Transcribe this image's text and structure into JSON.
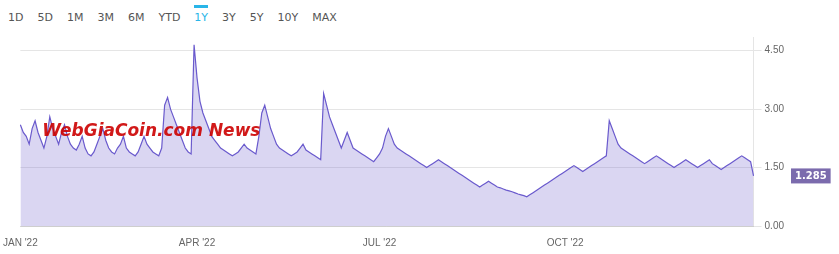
{
  "chart_data": {
    "type": "area",
    "buttons": [
      {
        "text": "1D"
      },
      {
        "text": "5D"
      },
      {
        "text": "1M"
      },
      {
        "text": "3M"
      },
      {
        "text": "6M"
      },
      {
        "text": "YTD"
      },
      {
        "text": "1Y",
        "color": "#29b5e8"
      },
      {
        "text": "3Y"
      },
      {
        "text": "5Y"
      },
      {
        "text": "10Y"
      },
      {
        "text": "MAX"
      }
    ],
    "annotations": [
      {
        "text": "WebGiaCoin.com News",
        "color": "#cc0000"
      },
      {
        "text": "1.285",
        "y": 1.285,
        "color": "#7b6bad"
      }
    ],
    "categories": [
      "JAN '22",
      null,
      null,
      null,
      null,
      null,
      null,
      null,
      null,
      null,
      null,
      null,
      null,
      null,
      null,
      null,
      null,
      null,
      null,
      null,
      null,
      null,
      null,
      null,
      null,
      null,
      null,
      null,
      null,
      null,
      null,
      null,
      null,
      null,
      null,
      null,
      null,
      null,
      null,
      null,
      null,
      null,
      null,
      null,
      null,
      null,
      null,
      null,
      null,
      null,
      null,
      null,
      null,
      null,
      null,
      null,
      null,
      null,
      null,
      null,
      "APR '22",
      null,
      null,
      null,
      null,
      null,
      null,
      null,
      null,
      null,
      null,
      null,
      null,
      null,
      null,
      null,
      null,
      null,
      null,
      null,
      null,
      null,
      null,
      null,
      null,
      null,
      null,
      null,
      null,
      null,
      null,
      null,
      null,
      null,
      null,
      null,
      null,
      null,
      null,
      null,
      null,
      null,
      null,
      null,
      null,
      null,
      null,
      null,
      null,
      null,
      null,
      null,
      null,
      null,
      null,
      null,
      null,
      null,
      null,
      null,
      null,
      null,
      "JUL '22",
      null,
      null,
      null,
      null,
      null,
      null,
      null,
      null,
      null,
      null,
      null,
      null,
      null,
      null,
      null,
      null,
      null,
      null,
      null,
      null,
      null,
      null,
      null,
      null,
      null,
      null,
      null,
      null,
      null,
      null,
      null,
      null,
      null,
      null,
      null,
      null,
      null,
      null,
      null,
      null,
      null,
      null,
      null,
      null,
      null,
      null,
      null,
      null,
      null,
      null,
      null,
      null,
      null,
      null,
      null,
      null,
      null,
      null,
      null,
      null,
      null,
      null,
      "OCT '22",
      null,
      null,
      null,
      null,
      null,
      null,
      null,
      null,
      null,
      null,
      null,
      null,
      null,
      null,
      null,
      null,
      null,
      null,
      null,
      null,
      null,
      null,
      null,
      null,
      null,
      null,
      null,
      null,
      null,
      null,
      null,
      null,
      null,
      null,
      null,
      null,
      null,
      null,
      null,
      null,
      null,
      null,
      null,
      null,
      null,
      null,
      null,
      null,
      null,
      null,
      null,
      null,
      null,
      null,
      null,
      null,
      null,
      null,
      null,
      null,
      null,
      null,
      null,
      null
    ],
    "values": [
      2.6,
      2.4,
      2.3,
      2.1,
      2.5,
      2.7,
      2.4,
      2.2,
      2.0,
      2.3,
      2.8,
      2.5,
      2.3,
      2.1,
      2.4,
      2.6,
      2.3,
      2.1,
      2.0,
      1.95,
      2.1,
      2.3,
      2.0,
      1.85,
      1.8,
      1.9,
      2.1,
      2.3,
      2.5,
      2.2,
      2.0,
      1.9,
      1.85,
      2.0,
      2.1,
      2.3,
      2.0,
      1.9,
      1.85,
      1.8,
      1.9,
      2.1,
      2.3,
      2.1,
      2.0,
      1.9,
      1.85,
      1.8,
      2.0,
      3.1,
      3.3,
      3.0,
      2.8,
      2.6,
      2.4,
      2.2,
      2.0,
      1.9,
      1.85,
      4.65,
      3.8,
      3.2,
      2.9,
      2.7,
      2.5,
      2.3,
      2.2,
      2.1,
      2.0,
      1.95,
      1.9,
      1.85,
      1.8,
      1.85,
      1.9,
      2.0,
      2.1,
      2.0,
      1.95,
      1.9,
      1.85,
      2.3,
      2.9,
      3.1,
      2.8,
      2.5,
      2.3,
      2.1,
      2.0,
      1.95,
      1.9,
      1.85,
      1.8,
      1.85,
      1.9,
      2.0,
      2.1,
      1.95,
      1.9,
      1.85,
      1.8,
      1.75,
      1.7,
      3.4,
      3.1,
      2.8,
      2.6,
      2.4,
      2.2,
      2.0,
      2.2,
      2.4,
      2.2,
      2.0,
      1.95,
      1.9,
      1.85,
      1.8,
      1.75,
      1.7,
      1.65,
      1.75,
      1.85,
      2.0,
      2.3,
      2.5,
      2.3,
      2.1,
      2.0,
      1.95,
      1.9,
      1.85,
      1.8,
      1.75,
      1.7,
      1.65,
      1.6,
      1.55,
      1.5,
      1.55,
      1.6,
      1.65,
      1.7,
      1.65,
      1.6,
      1.55,
      1.5,
      1.45,
      1.4,
      1.35,
      1.3,
      1.25,
      1.2,
      1.15,
      1.1,
      1.05,
      1.0,
      1.05,
      1.1,
      1.15,
      1.1,
      1.05,
      1.0,
      0.98,
      0.95,
      0.92,
      0.9,
      0.88,
      0.85,
      0.82,
      0.8,
      0.78,
      0.75,
      0.8,
      0.85,
      0.9,
      0.95,
      1.0,
      1.05,
      1.1,
      1.15,
      1.2,
      1.25,
      1.3,
      1.35,
      1.4,
      1.45,
      1.5,
      1.55,
      1.5,
      1.45,
      1.4,
      1.45,
      1.5,
      1.55,
      1.6,
      1.65,
      1.7,
      1.75,
      1.8,
      2.7,
      2.5,
      2.3,
      2.1,
      2.0,
      1.95,
      1.9,
      1.85,
      1.8,
      1.75,
      1.7,
      1.65,
      1.6,
      1.65,
      1.7,
      1.75,
      1.8,
      1.75,
      1.7,
      1.65,
      1.6,
      1.55,
      1.5,
      1.55,
      1.6,
      1.65,
      1.7,
      1.65,
      1.6,
      1.55,
      1.5,
      1.55,
      1.6,
      1.65,
      1.7,
      1.6,
      1.55,
      1.5,
      1.45,
      1.5,
      1.55,
      1.6,
      1.65,
      1.7,
      1.75,
      1.8,
      1.75,
      1.7,
      1.65,
      1.285
    ],
    "color": "#6a5acd",
    "ylim": [
      0,
      4.85
    ],
    "yticks": [
      {
        "value": 0,
        "label": "0.00"
      },
      {
        "value": 1.5,
        "label": "1.50"
      },
      {
        "value": 3,
        "label": "3.00"
      },
      {
        "value": 4.5,
        "label": "4.50"
      }
    ],
    "grid": "y"
  }
}
